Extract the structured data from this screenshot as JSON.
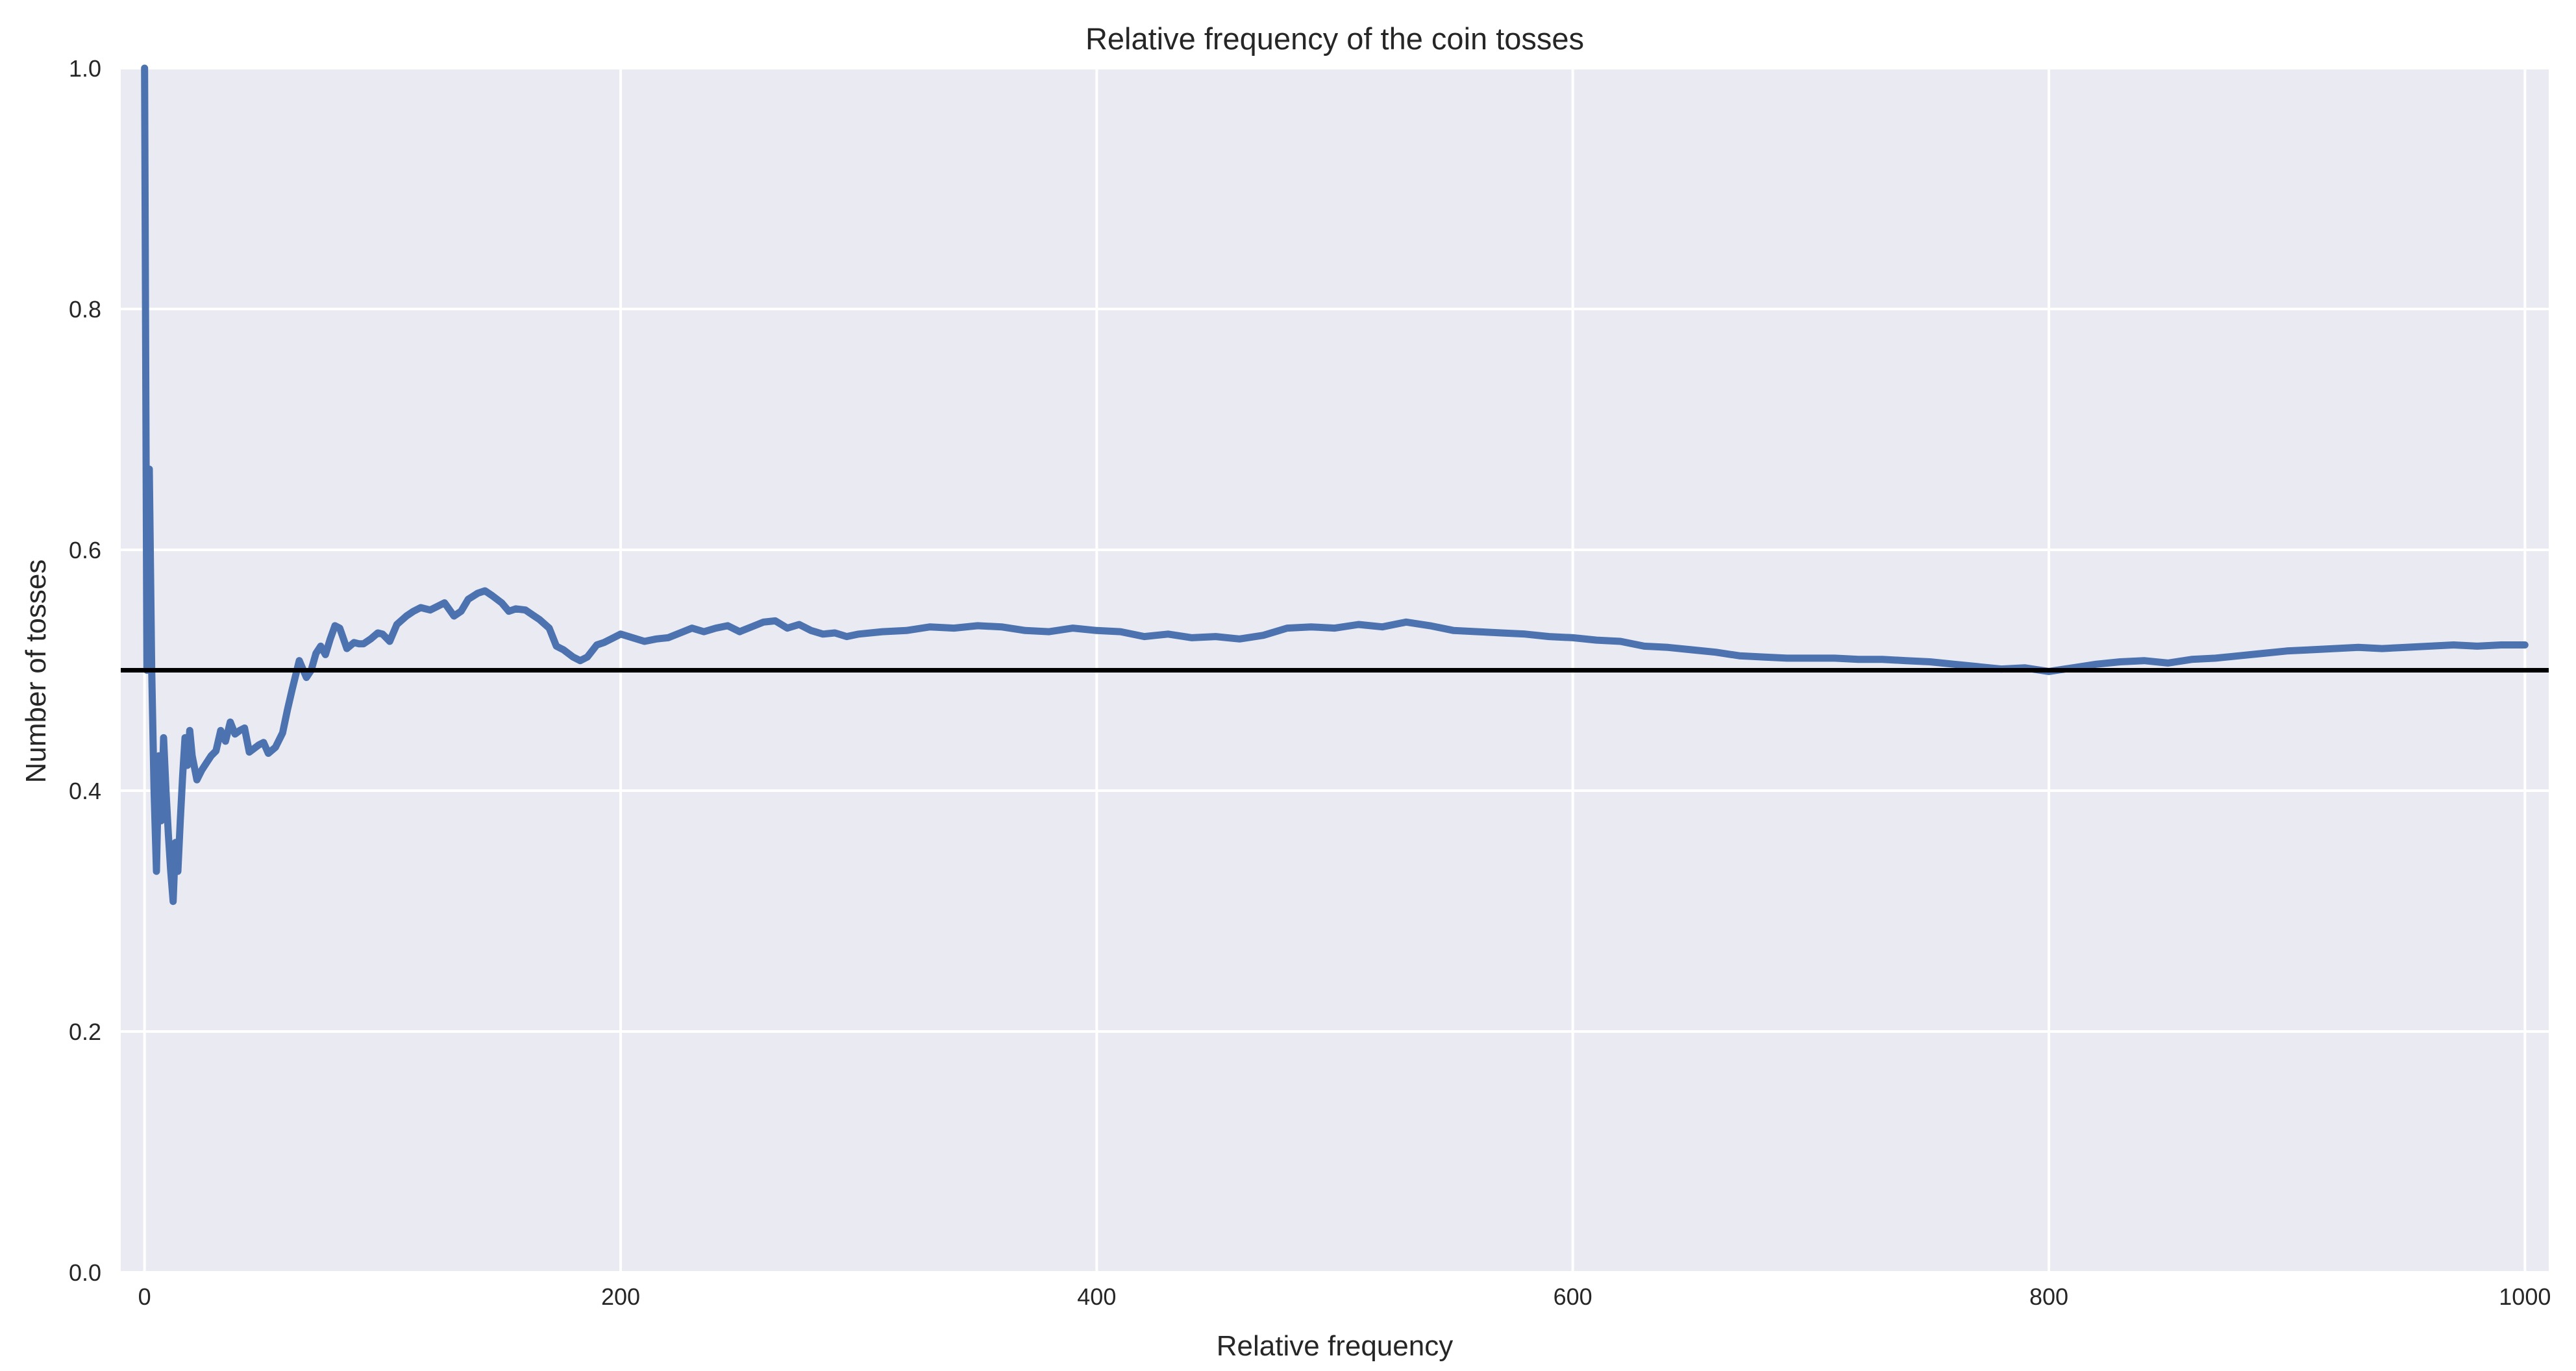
{
  "chart_data": {
    "type": "line",
    "title": "Relative frequency of the coin tosses",
    "xlabel": "Relative frequency",
    "ylabel": "Number of tosses",
    "xlim": [
      -10,
      1010
    ],
    "ylim": [
      0,
      1.0
    ],
    "xticks": [
      0,
      200,
      400,
      600,
      800,
      1000
    ],
    "yticks": [
      0.0,
      0.2,
      0.4,
      0.6,
      0.8,
      1.0
    ],
    "xtick_labels": [
      "0",
      "200",
      "400",
      "600",
      "800",
      "1000"
    ],
    "ytick_labels": [
      "0.0",
      "0.2",
      "0.4",
      "0.6",
      "0.8",
      "1.0"
    ],
    "grid": true,
    "legend": "none",
    "background_color": "#eaeaf2",
    "grid_color": "#ffffff",
    "reference_line": {
      "y": 0.5,
      "color": "#000000"
    },
    "series": [
      {
        "color": "#4c72b0",
        "x": [
          0,
          1,
          2,
          3,
          4,
          5,
          6,
          7,
          8,
          9,
          10,
          11,
          12,
          13,
          14,
          15,
          16,
          17,
          18,
          19,
          20,
          22,
          24,
          26,
          28,
          30,
          32,
          34,
          36,
          38,
          40,
          42,
          44,
          46,
          48,
          50,
          52,
          55,
          58,
          60,
          62,
          65,
          68,
          70,
          72,
          74,
          76,
          78,
          80,
          82,
          85,
          88,
          90,
          92,
          95,
          98,
          100,
          103,
          106,
          110,
          113,
          116,
          120,
          123,
          126,
          130,
          133,
          136,
          140,
          143,
          146,
          150,
          153,
          156,
          160,
          163,
          166,
          170,
          173,
          176,
          180,
          183,
          186,
          190,
          193,
          196,
          200,
          205,
          210,
          215,
          220,
          225,
          230,
          235,
          240,
          245,
          250,
          255,
          260,
          265,
          270,
          275,
          280,
          285,
          290,
          295,
          300,
          310,
          320,
          330,
          340,
          350,
          360,
          370,
          380,
          390,
          400,
          410,
          420,
          430,
          440,
          450,
          460,
          470,
          480,
          490,
          500,
          510,
          520,
          530,
          540,
          550,
          560,
          570,
          580,
          590,
          600,
          610,
          620,
          630,
          640,
          650,
          660,
          670,
          680,
          690,
          700,
          710,
          720,
          730,
          740,
          750,
          760,
          770,
          780,
          790,
          800,
          810,
          820,
          830,
          840,
          850,
          860,
          870,
          880,
          890,
          900,
          910,
          920,
          930,
          940,
          950,
          960,
          970,
          980,
          990,
          1000
        ],
        "y": [
          1.0,
          0.5,
          0.667,
          0.5,
          0.4,
          0.333,
          0.429,
          0.375,
          0.444,
          0.4,
          0.364,
          0.333,
          0.308,
          0.357,
          0.333,
          0.375,
          0.412,
          0.444,
          0.421,
          0.45,
          0.429,
          0.409,
          0.417,
          0.423,
          0.429,
          0.433,
          0.45,
          0.441,
          0.457,
          0.447,
          0.45,
          0.452,
          0.432,
          0.435,
          0.438,
          0.44,
          0.431,
          0.436,
          0.448,
          0.467,
          0.484,
          0.508,
          0.494,
          0.5,
          0.514,
          0.52,
          0.513,
          0.526,
          0.537,
          0.535,
          0.518,
          0.523,
          0.522,
          0.522,
          0.526,
          0.531,
          0.53,
          0.524,
          0.538,
          0.545,
          0.549,
          0.552,
          0.55,
          0.553,
          0.556,
          0.545,
          0.549,
          0.559,
          0.564,
          0.566,
          0.562,
          0.556,
          0.549,
          0.551,
          0.55,
          0.546,
          0.542,
          0.535,
          0.52,
          0.517,
          0.511,
          0.508,
          0.511,
          0.521,
          0.523,
          0.526,
          0.53,
          0.527,
          0.524,
          0.526,
          0.527,
          0.531,
          0.535,
          0.532,
          0.535,
          0.537,
          0.532,
          0.536,
          0.54,
          0.541,
          0.535,
          0.538,
          0.533,
          0.53,
          0.531,
          0.528,
          0.53,
          0.532,
          0.533,
          0.536,
          0.535,
          0.537,
          0.536,
          0.533,
          0.532,
          0.535,
          0.533,
          0.532,
          0.528,
          0.53,
          0.527,
          0.528,
          0.526,
          0.529,
          0.535,
          0.536,
          0.535,
          0.538,
          0.536,
          0.54,
          0.537,
          0.533,
          0.532,
          0.531,
          0.53,
          0.528,
          0.527,
          0.525,
          0.524,
          0.52,
          0.519,
          0.517,
          0.515,
          0.512,
          0.511,
          0.51,
          0.51,
          0.51,
          0.509,
          0.509,
          0.508,
          0.507,
          0.505,
          0.503,
          0.501,
          0.502,
          0.499,
          0.502,
          0.505,
          0.507,
          0.508,
          0.506,
          0.509,
          0.51,
          0.512,
          0.514,
          0.516,
          0.517,
          0.518,
          0.519,
          0.518,
          0.519,
          0.52,
          0.521,
          0.52,
          0.521,
          0.521
        ]
      }
    ]
  }
}
